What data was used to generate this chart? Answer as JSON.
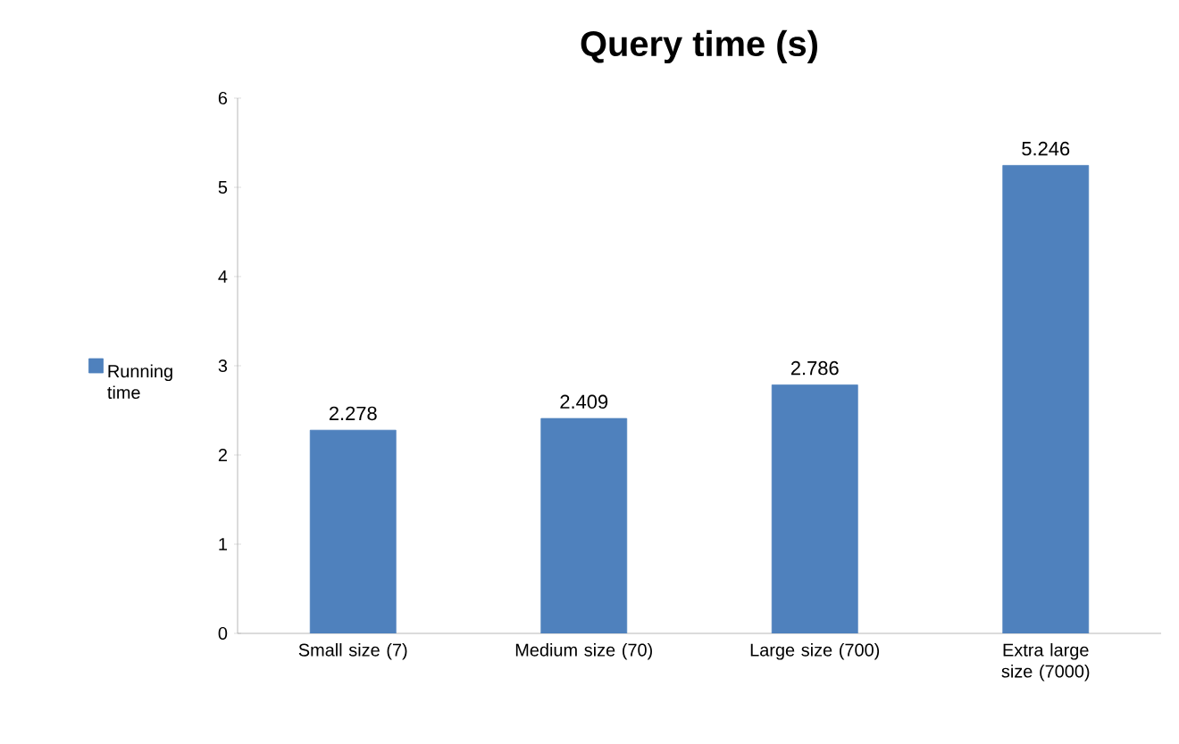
{
  "chart_data": {
    "type": "bar",
    "title": "Query time (s)",
    "categories": [
      "Small size (7)",
      "Medium size (70)",
      "Large size (700)",
      "Extra large size (7000)"
    ],
    "series": [
      {
        "name": "Running time",
        "color": "#4f81bd",
        "values": [
          2.278,
          2.409,
          2.786,
          5.246
        ]
      }
    ],
    "ylim": [
      0,
      6
    ],
    "yticks": [
      0,
      1,
      2,
      3,
      4,
      5,
      6
    ],
    "data_labels": true,
    "legend": "left"
  }
}
